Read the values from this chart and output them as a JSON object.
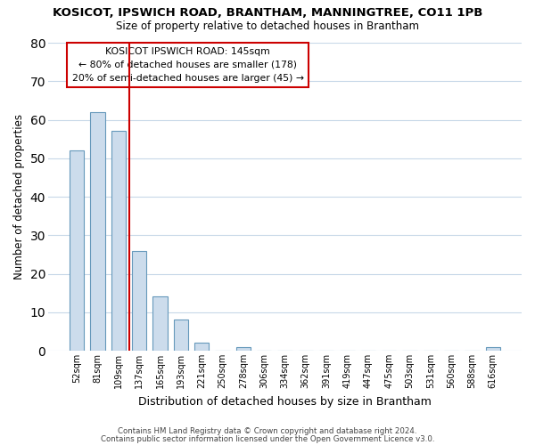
{
  "title": "KOSICOT, IPSWICH ROAD, BRANTHAM, MANNINGTREE, CO11 1PB",
  "subtitle": "Size of property relative to detached houses in Brantham",
  "xlabel": "Distribution of detached houses by size in Brantham",
  "ylabel": "Number of detached properties",
  "categories": [
    "52sqm",
    "81sqm",
    "109sqm",
    "137sqm",
    "165sqm",
    "193sqm",
    "221sqm",
    "250sqm",
    "278sqm",
    "306sqm",
    "334sqm",
    "362sqm",
    "391sqm",
    "419sqm",
    "447sqm",
    "475sqm",
    "503sqm",
    "531sqm",
    "560sqm",
    "588sqm",
    "616sqm"
  ],
  "values": [
    52,
    62,
    57,
    26,
    14,
    8,
    2,
    0,
    1,
    0,
    0,
    0,
    0,
    0,
    0,
    0,
    0,
    0,
    0,
    0,
    1
  ],
  "bar_color": "#ccdcec",
  "bar_edge_color": "#6699bb",
  "vline_x": 2.5,
  "vline_color": "#cc0000",
  "ylim": [
    0,
    80
  ],
  "yticks": [
    0,
    10,
    20,
    30,
    40,
    50,
    60,
    70,
    80
  ],
  "annotation_title": "KOSICOT IPSWICH ROAD: 145sqm",
  "annotation_line1": "← 80% of detached houses are smaller (178)",
  "annotation_line2": "20% of semi-detached houses are larger (45) →",
  "annotation_box_color": "#ffffff",
  "annotation_box_edge": "#cc0000",
  "footer1": "Contains HM Land Registry data © Crown copyright and database right 2024.",
  "footer2": "Contains public sector information licensed under the Open Government Licence v3.0.",
  "background_color": "#ffffff",
  "grid_color": "#c8d8e8"
}
